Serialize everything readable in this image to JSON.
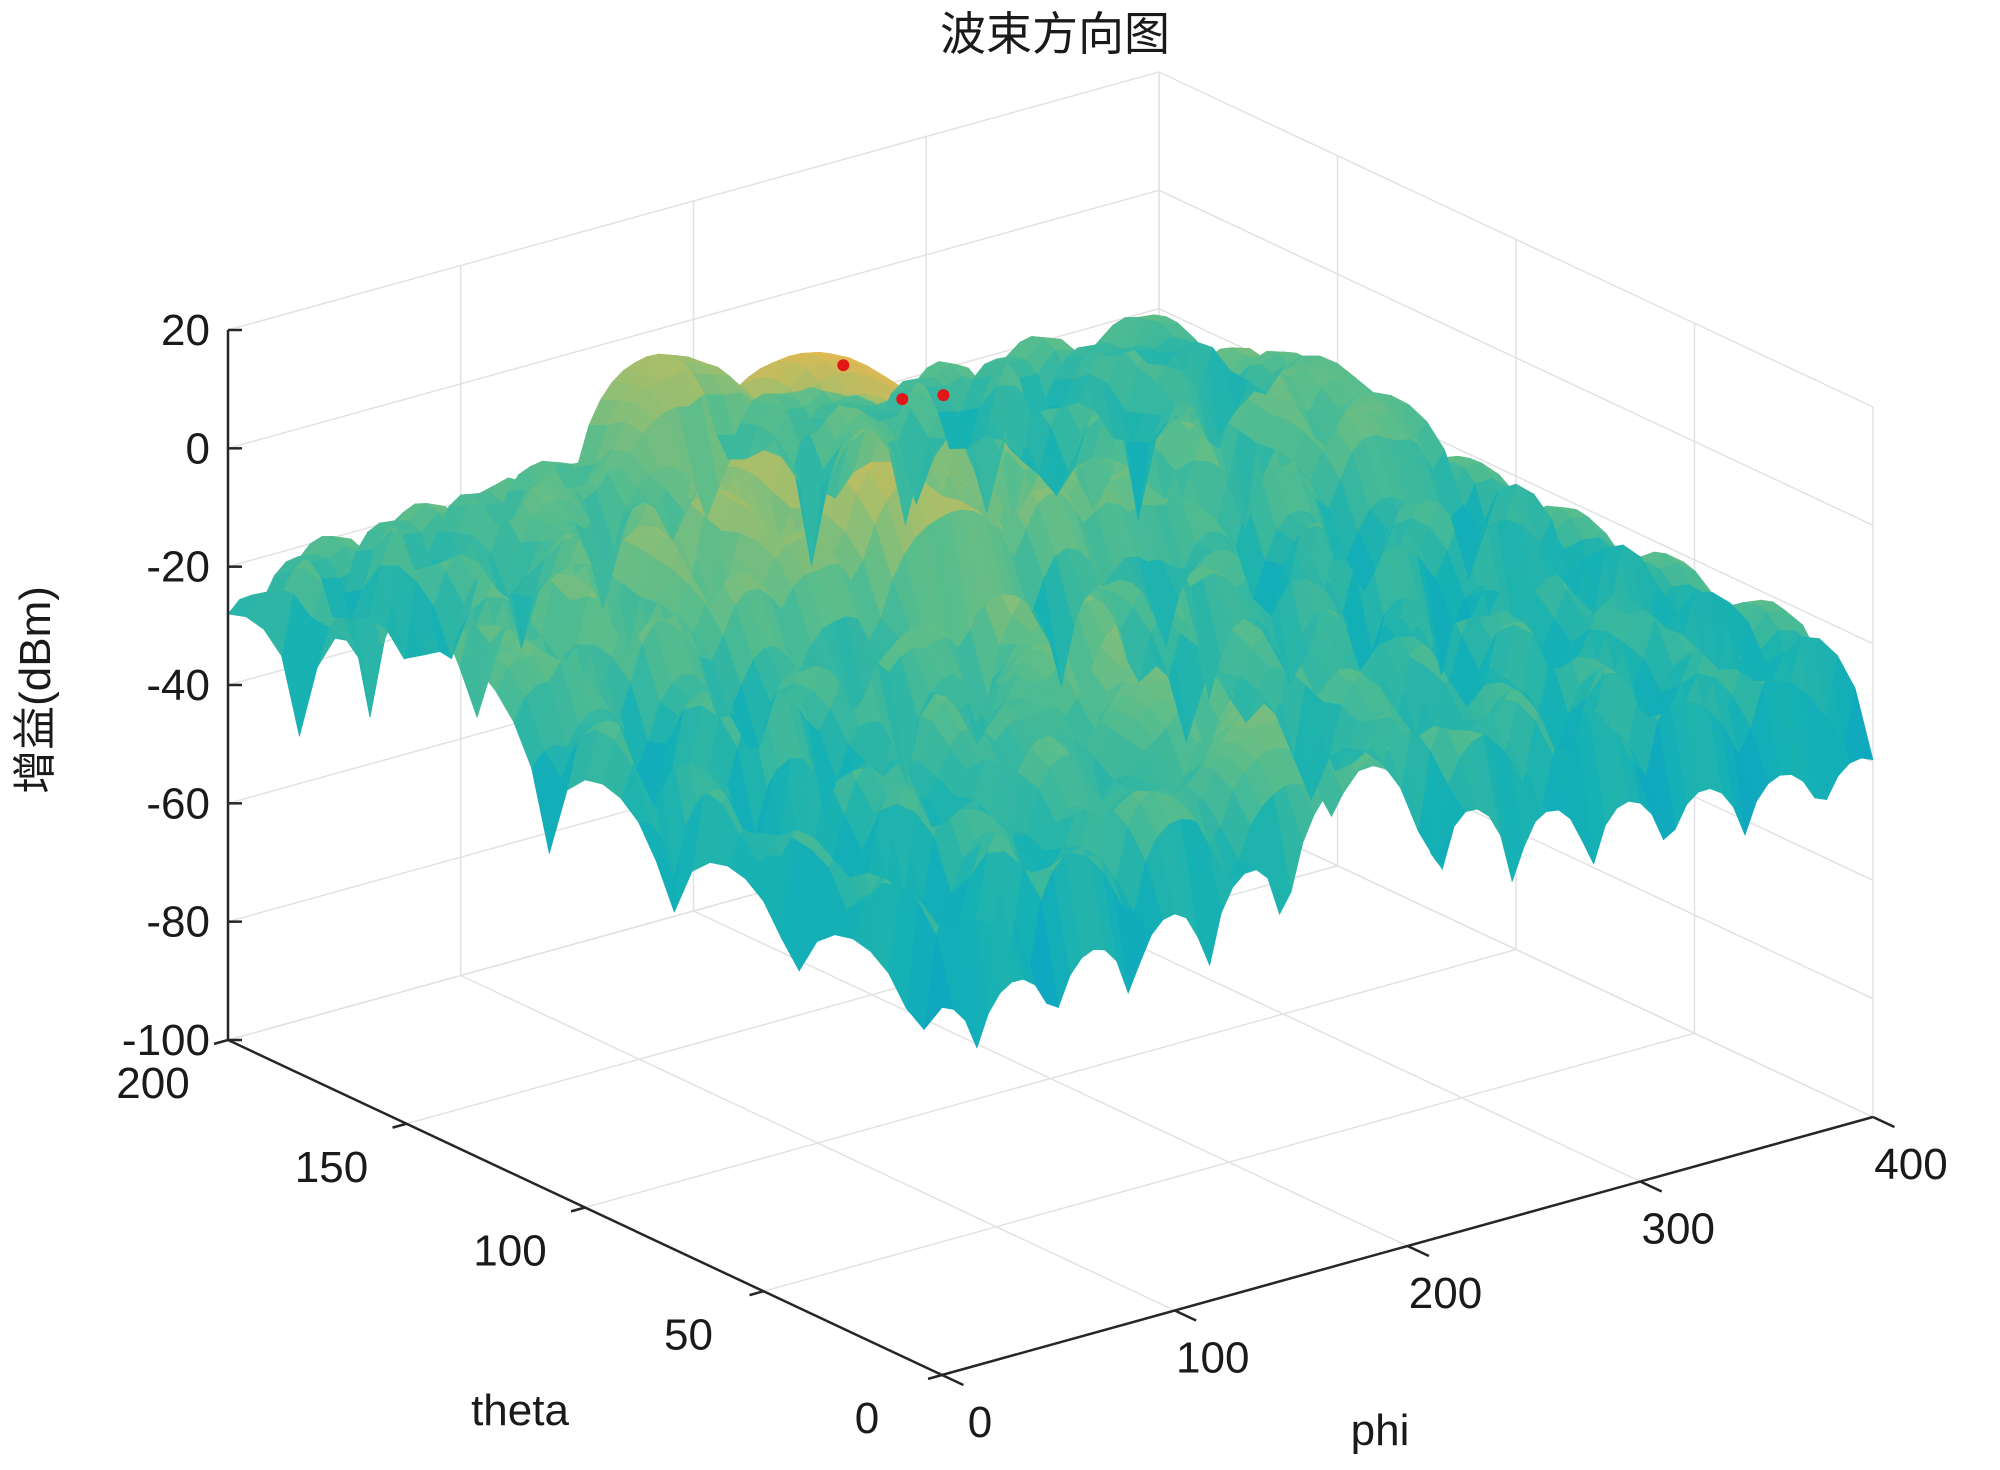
{
  "chart_data": {
    "type": "surface3d",
    "title": "波束方向图",
    "xlabel": "phi",
    "ylabel": "theta",
    "zlabel": "增益(dBm)",
    "x_range": [
      0,
      400
    ],
    "y_range": [
      0,
      200
    ],
    "z_range": [
      -100,
      20
    ],
    "x_ticks": [
      "0",
      "100",
      "200",
      "300",
      "400"
    ],
    "y_ticks": [
      "0",
      "50",
      "100",
      "150",
      "200"
    ],
    "z_ticks": [
      "20",
      "0",
      "-20",
      "-40",
      "-60",
      "-80",
      "-100"
    ],
    "grid": true,
    "colormap": "parula",
    "colors": {
      "low": "#3d7ff2",
      "mid": "#33c0b0",
      "high": "#f7c531",
      "peak": "#e21616"
    },
    "peak_gain": 10,
    "peak_markers": [
      {
        "phi": 180,
        "theta": 145,
        "gain": 10
      },
      {
        "phi": 190,
        "theta": 135,
        "gain": 6
      },
      {
        "phi": 200,
        "theta": 130,
        "gain": 7
      }
    ]
  }
}
